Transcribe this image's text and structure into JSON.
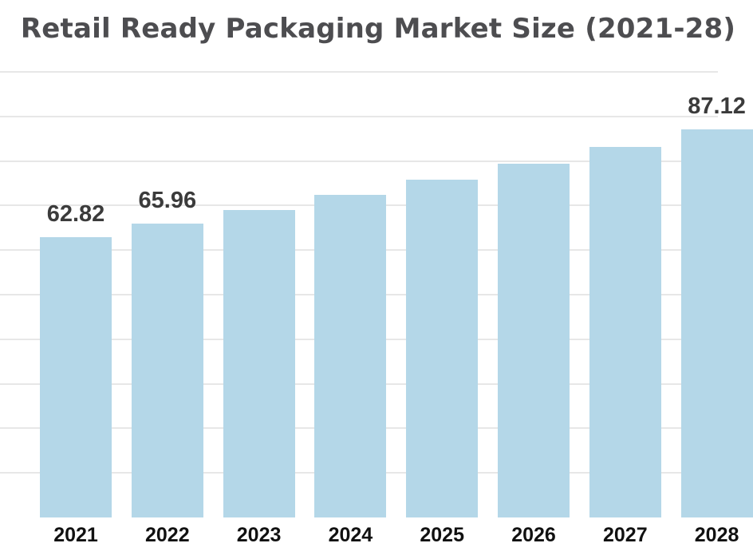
{
  "chart_data": {
    "type": "bar",
    "title": "Retail Ready Packaging Market Size (2021-28)",
    "categories": [
      "2021",
      "2022",
      "2023",
      "2024",
      "2025",
      "2026",
      "2027",
      "2028"
    ],
    "values": [
      62.82,
      65.96,
      69.08,
      72.35,
      75.77,
      79.35,
      83.11,
      87.12
    ],
    "data_labels": [
      "62.82",
      "65.96",
      "",
      "",
      "",
      "",
      "",
      "87.12"
    ],
    "xlabel": "",
    "ylabel": "",
    "ylim": [
      0,
      100
    ],
    "grid": "horizontal",
    "gridline_step": 10,
    "legend": "none",
    "colors": {
      "bar_fill": "#b4d7e8",
      "title_text": "#4d4d50",
      "value_label_text": "#3b3b3b",
      "axis_label_text": "#111111",
      "gridline": "#e7e7e7",
      "background": "#ffffff"
    }
  }
}
